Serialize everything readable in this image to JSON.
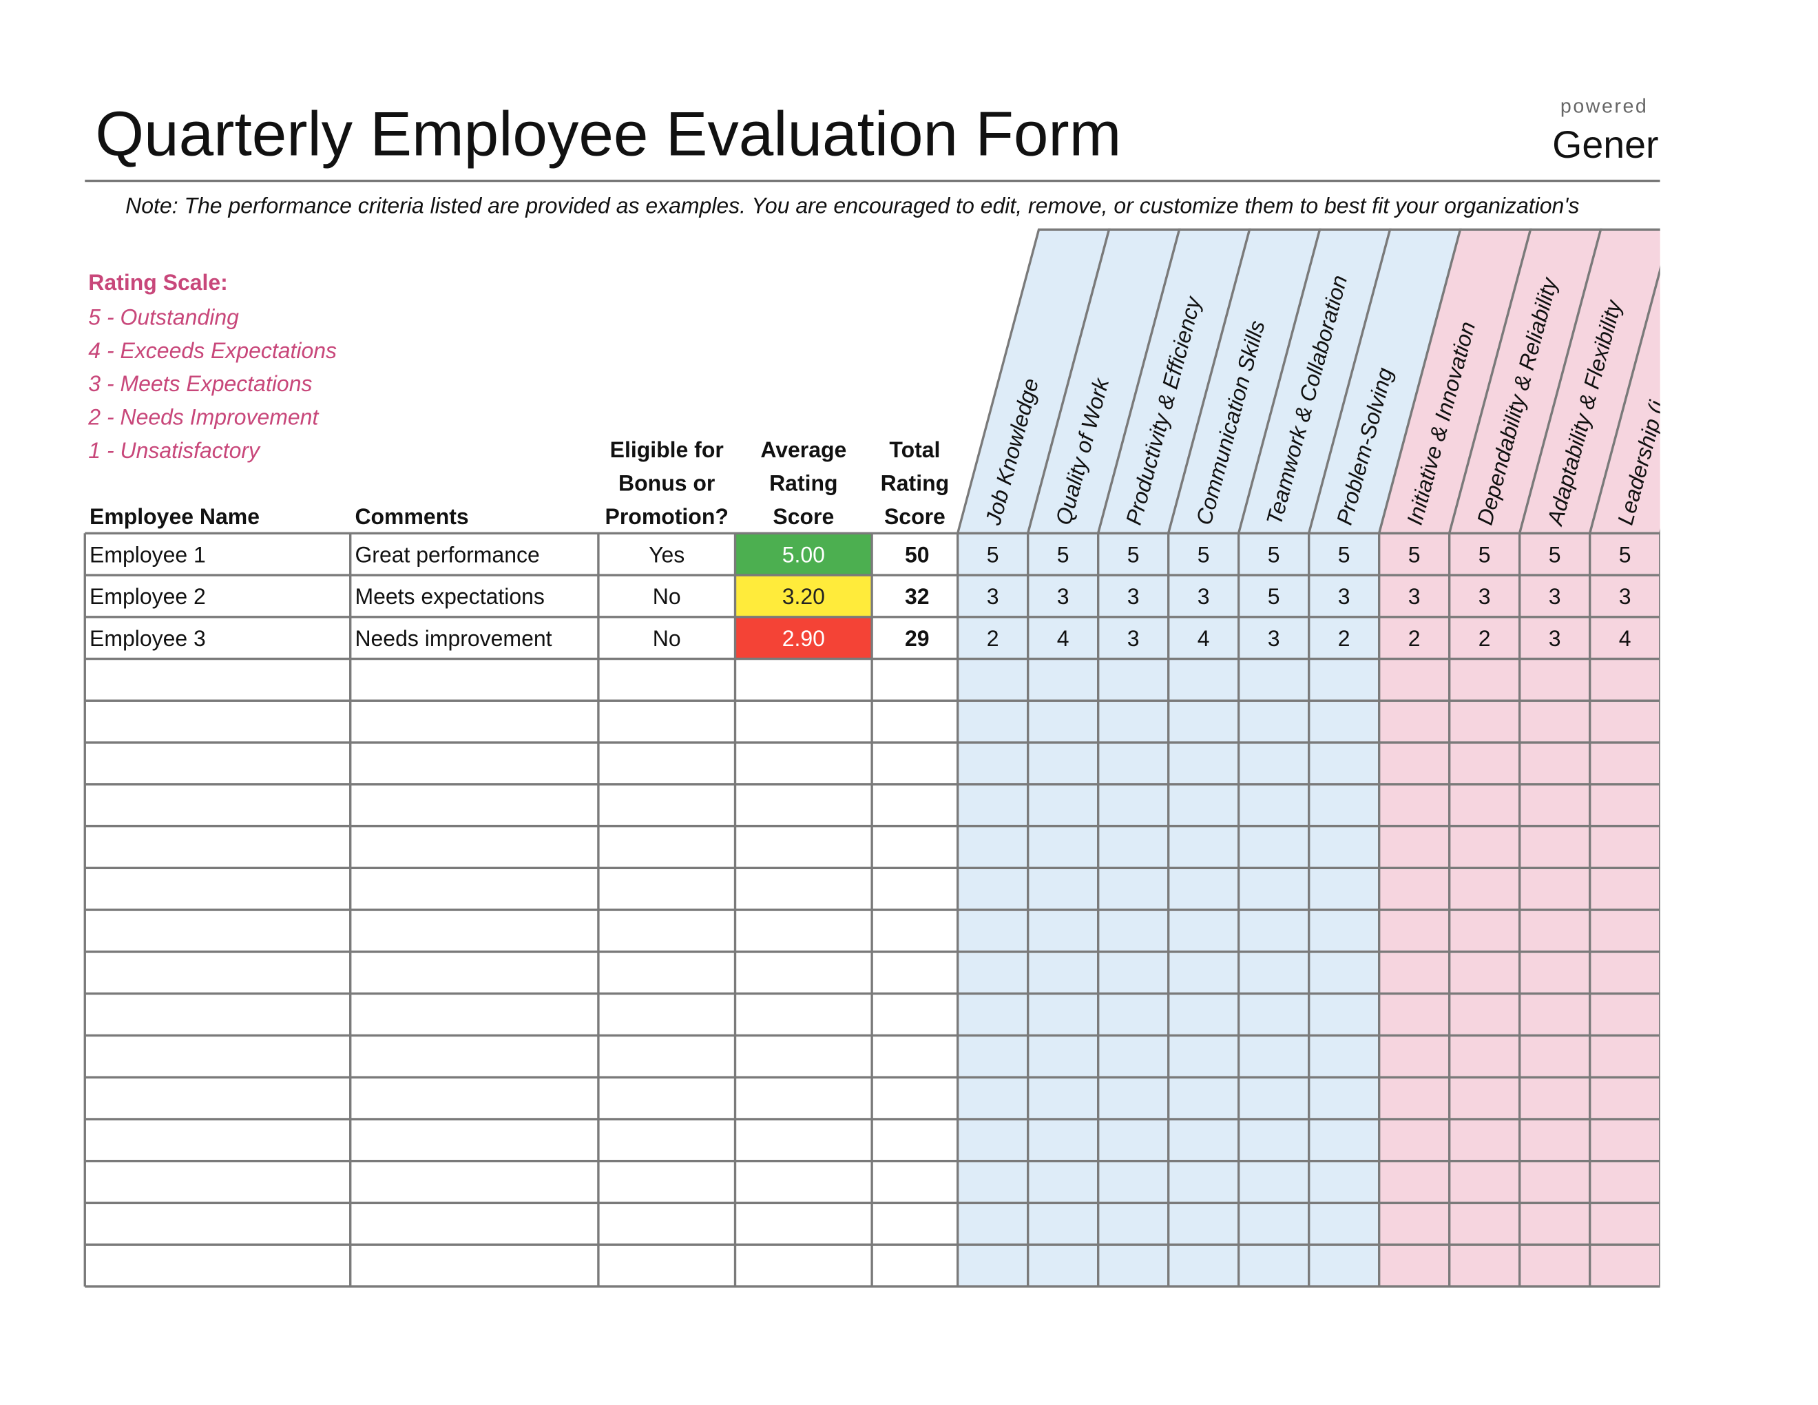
{
  "header": {
    "title": "Quarterly Employee Evaluation Form",
    "powered": "powered",
    "brand": "Gener",
    "note": "Note: The performance criteria listed are provided as examples. You are encouraged to edit, remove, or customize them to best fit your organization's"
  },
  "rating_scale": {
    "title": "Rating Scale:",
    "items": [
      "5 - Outstanding",
      "4 - Exceeds Expectations",
      "3 - Meets Expectations",
      "2 - Needs Improvement",
      "1 - Unsatisfactory"
    ]
  },
  "table": {
    "columns": {
      "name": [
        "Employee Name"
      ],
      "comments": [
        "Comments"
      ],
      "eligible": [
        "Eligible for",
        "Bonus or",
        "Promotion?"
      ],
      "average": [
        "Average",
        "Rating",
        "Score"
      ],
      "total": [
        "Total",
        "Rating",
        "Score"
      ]
    },
    "criteria": [
      "Job Knowledge",
      "Quality of Work",
      "Productivity & Efficiency",
      "Communication Skills",
      "Teamwork & Collaboration",
      "Problem-Solving",
      "Initiative & Innovation",
      "Dependability & Reliability",
      "Adaptability & Flexibility",
      "Leadership (i"
    ],
    "criteria_colors": [
      "#deecf8",
      "#deecf8",
      "#deecf8",
      "#deecf8",
      "#deecf8",
      "#deecf8",
      "#f6d5df",
      "#f6d5df",
      "#f6d5df",
      "#f6d5df"
    ],
    "rows": [
      {
        "name": "Employee 1",
        "comment": "Great performance",
        "eligible": "Yes",
        "average": "5.00",
        "average_fill": "#4caf50",
        "average_text": "#ffffff",
        "total": 50,
        "scores": [
          5,
          5,
          5,
          5,
          5,
          5,
          5,
          5,
          5,
          5
        ]
      },
      {
        "name": "Employee 2",
        "comment": "Meets expectations",
        "eligible": "No",
        "average": "3.20",
        "average_fill": "#ffeb3b",
        "average_text": "#222222",
        "total": 32,
        "scores": [
          3,
          3,
          3,
          3,
          5,
          3,
          3,
          3,
          3,
          3
        ]
      },
      {
        "name": "Employee 3",
        "comment": "Needs improvement",
        "eligible": "No",
        "average": "2.90",
        "average_fill": "#f44336",
        "average_text": "#ffffff",
        "total": 29,
        "scores": [
          2,
          4,
          3,
          4,
          3,
          2,
          2,
          2,
          3,
          4
        ]
      }
    ]
  }
}
